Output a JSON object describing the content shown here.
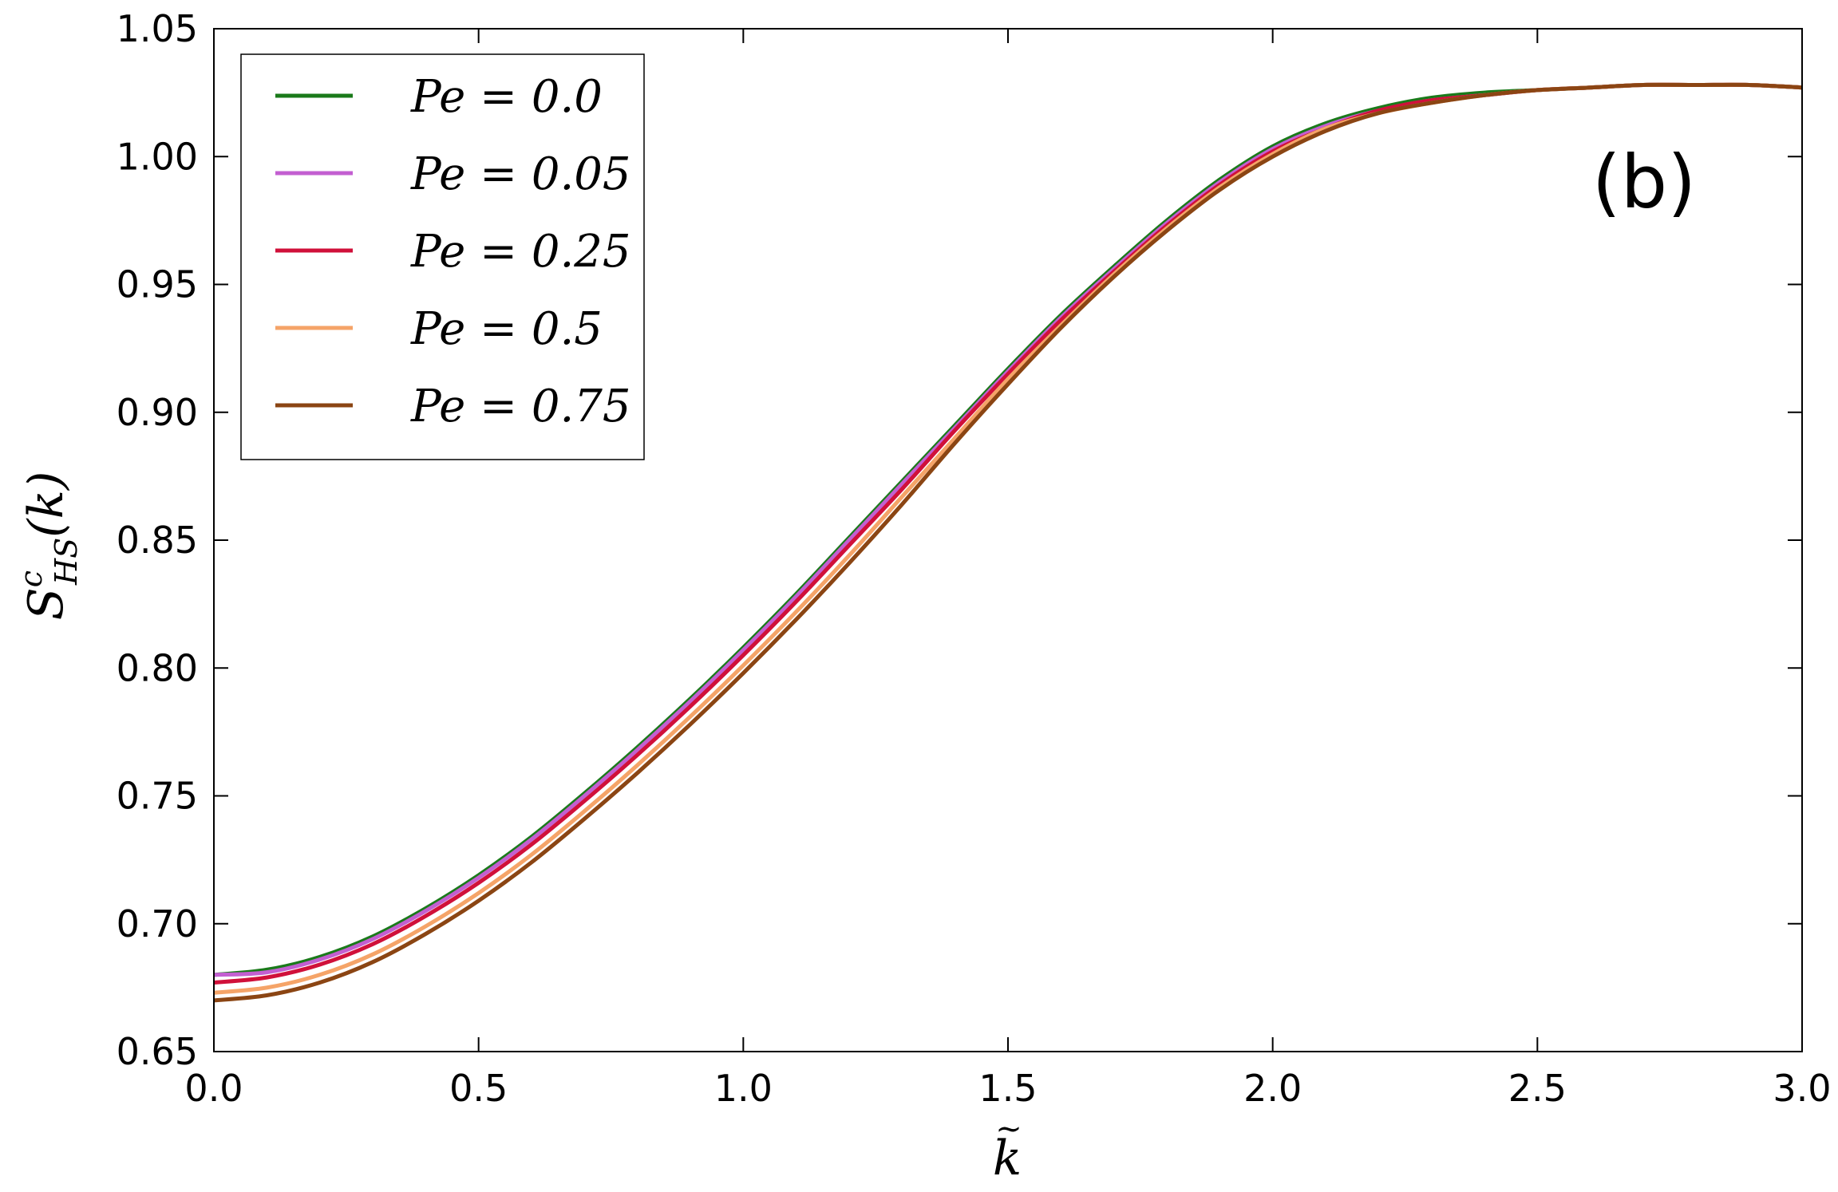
{
  "chart_data": {
    "type": "line",
    "xlabel": "k̃",
    "ylabel": "S^c_HS(k̃)",
    "xlim": [
      0.0,
      3.0
    ],
    "ylim": [
      0.65,
      1.05
    ],
    "xticks": [
      "0.0",
      "0.5",
      "1.0",
      "1.5",
      "2.0",
      "2.5",
      "3.0"
    ],
    "yticks": [
      "0.65",
      "0.70",
      "0.75",
      "0.80",
      "0.85",
      "0.90",
      "0.95",
      "1.00",
      "1.05"
    ],
    "grid": false,
    "legend_position": "top-left",
    "annotation": "(b)",
    "x": [
      0.0,
      0.1,
      0.2,
      0.3,
      0.4,
      0.5,
      0.6,
      0.7,
      0.8,
      0.9,
      1.0,
      1.1,
      1.2,
      1.3,
      1.4,
      1.5,
      1.6,
      1.7,
      1.8,
      1.9,
      2.0,
      2.1,
      2.2,
      2.3,
      2.4,
      2.5,
      2.6,
      2.7,
      2.8,
      2.9,
      3.0
    ],
    "series": [
      {
        "name": "Pe = 0.0",
        "color": "#1a7a1a",
        "values": [
          0.68,
          0.682,
          0.687,
          0.695,
          0.706,
          0.719,
          0.734,
          0.751,
          0.769,
          0.788,
          0.808,
          0.829,
          0.851,
          0.873,
          0.895,
          0.917,
          0.938,
          0.957,
          0.975,
          0.991,
          1.004,
          1.013,
          1.019,
          1.023,
          1.025,
          1.026,
          1.027,
          1.028,
          1.028,
          1.028,
          1.027
        ]
      },
      {
        "name": "Pe = 0.05",
        "color": "#c35fd1",
        "values": [
          0.68,
          0.681,
          0.686,
          0.694,
          0.705,
          0.718,
          0.733,
          0.75,
          0.768,
          0.787,
          0.807,
          0.828,
          0.85,
          0.872,
          0.894,
          0.916,
          0.937,
          0.956,
          0.974,
          0.99,
          1.003,
          1.012,
          1.018,
          1.022,
          1.024,
          1.026,
          1.027,
          1.028,
          1.028,
          1.028,
          1.027
        ]
      },
      {
        "name": "Pe = 0.25",
        "color": "#d0103a",
        "values": [
          0.677,
          0.679,
          0.684,
          0.692,
          0.703,
          0.716,
          0.731,
          0.748,
          0.766,
          0.785,
          0.805,
          0.826,
          0.848,
          0.87,
          0.893,
          0.915,
          0.936,
          0.955,
          0.973,
          0.989,
          1.002,
          1.011,
          1.018,
          1.022,
          1.024,
          1.026,
          1.027,
          1.028,
          1.028,
          1.028,
          1.027
        ]
      },
      {
        "name": "Pe = 0.5",
        "color": "#f5a468",
        "values": [
          0.673,
          0.675,
          0.68,
          0.688,
          0.699,
          0.712,
          0.727,
          0.744,
          0.762,
          0.781,
          0.801,
          0.822,
          0.844,
          0.867,
          0.89,
          0.913,
          0.934,
          0.954,
          0.972,
          0.988,
          1.001,
          1.011,
          1.017,
          1.021,
          1.024,
          1.026,
          1.027,
          1.028,
          1.028,
          1.028,
          1.027
        ]
      },
      {
        "name": "Pe = 0.75",
        "color": "#8b4513",
        "values": [
          0.67,
          0.672,
          0.677,
          0.685,
          0.696,
          0.709,
          0.724,
          0.741,
          0.759,
          0.778,
          0.798,
          0.819,
          0.841,
          0.864,
          0.888,
          0.911,
          0.933,
          0.953,
          0.971,
          0.987,
          1.0,
          1.01,
          1.017,
          1.021,
          1.024,
          1.026,
          1.027,
          1.028,
          1.028,
          1.028,
          1.027
        ]
      }
    ]
  }
}
